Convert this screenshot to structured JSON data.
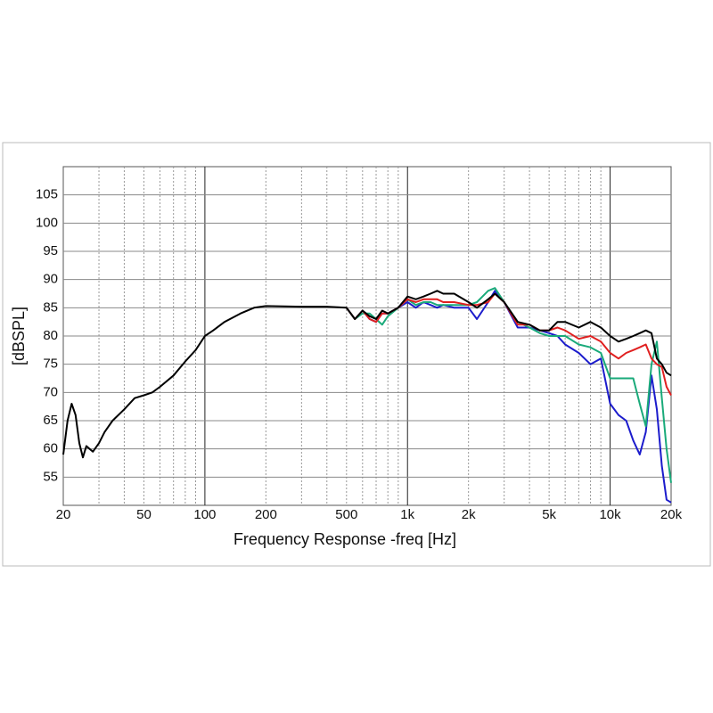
{
  "chart_data": {
    "type": "line",
    "ylabel": "[dBSPL]",
    "xlabel": "Frequency Response -freq [Hz]",
    "xscale": "log",
    "grid": true,
    "xlim": [
      20,
      20000
    ],
    "ylim": [
      50,
      110
    ],
    "yticks": [
      55,
      60,
      65,
      70,
      75,
      80,
      85,
      90,
      95,
      100,
      105
    ],
    "xticks": [
      20,
      50,
      100,
      200,
      500,
      {
        "value": 1000,
        "label": "1k"
      },
      {
        "value": 2000,
        "label": "2k"
      },
      {
        "value": 5000,
        "label": "5k"
      },
      {
        "value": 10000,
        "label": "10k"
      },
      {
        "value": 20000,
        "label": "20k"
      }
    ],
    "xgrid_major": [
      100,
      1000,
      10000
    ],
    "xgrid_minor": [
      30,
      40,
      50,
      60,
      70,
      80,
      90,
      200,
      300,
      400,
      500,
      600,
      700,
      800,
      900,
      2000,
      3000,
      4000,
      5000,
      6000,
      7000,
      8000,
      9000
    ],
    "x": [
      20,
      21,
      22,
      23,
      24,
      25,
      26,
      27,
      28,
      30,
      32,
      35,
      40,
      45,
      50,
      55,
      60,
      70,
      80,
      90,
      100,
      110,
      125,
      150,
      175,
      200,
      300,
      400,
      500,
      550,
      600,
      650,
      700,
      750,
      800,
      900,
      1000,
      1100,
      1200,
      1300,
      1400,
      1500,
      1700,
      2000,
      2200,
      2500,
      2700,
      3000,
      3500,
      4000,
      4500,
      5000,
      5500,
      6000,
      7000,
      8000,
      9000,
      10000,
      11000,
      12000,
      13000,
      14000,
      15000,
      16000,
      17000,
      18000,
      19000,
      20000
    ],
    "series": [
      {
        "color": "#000000",
        "values": [
          59,
          65,
          68,
          66,
          61,
          58.5,
          60.5,
          60,
          59.5,
          61,
          63,
          65,
          67,
          69,
          69.5,
          70,
          71,
          73,
          75.5,
          77.5,
          80,
          81,
          82.5,
          84,
          85,
          85.3,
          85.2,
          85.2,
          85,
          83,
          84.5,
          83.5,
          83,
          84.5,
          84,
          85,
          87,
          86.5,
          87,
          87.5,
          88,
          87.5,
          87.5,
          86,
          85,
          86.5,
          87.5,
          86,
          82.5,
          82,
          81,
          81,
          82.5,
          82.5,
          81.5,
          82.5,
          81.5,
          80,
          79,
          79.5,
          80,
          80.5,
          81,
          80.5,
          76,
          75,
          73.5,
          73
        ]
      },
      {
        "color": "#e02020",
        "values": [
          null,
          null,
          null,
          null,
          null,
          null,
          null,
          null,
          null,
          null,
          null,
          null,
          null,
          null,
          null,
          null,
          null,
          null,
          null,
          null,
          null,
          null,
          null,
          null,
          null,
          null,
          null,
          null,
          85,
          83,
          84.5,
          83,
          82.5,
          84,
          84,
          85,
          86.5,
          86,
          86.5,
          86.5,
          86.5,
          86,
          86,
          85.5,
          85.5,
          86,
          87.5,
          86,
          82,
          82,
          81,
          81,
          81.5,
          81,
          79.5,
          80,
          79,
          77,
          76,
          77,
          77.5,
          78,
          78.5,
          76,
          75,
          74.5,
          71,
          69.5
        ]
      },
      {
        "color": "#1aaa7a",
        "values": [
          null,
          null,
          null,
          null,
          null,
          null,
          null,
          null,
          null,
          null,
          null,
          null,
          null,
          null,
          null,
          null,
          null,
          null,
          null,
          null,
          null,
          null,
          null,
          null,
          null,
          null,
          null,
          null,
          85,
          83,
          84,
          84,
          83,
          82,
          83.5,
          85,
          86.5,
          85.5,
          86,
          86,
          85.5,
          85.5,
          85.5,
          85.5,
          86,
          88,
          88.5,
          86,
          82.5,
          81.5,
          80.5,
          80,
          80,
          80,
          78.5,
          78,
          77,
          72.5,
          72.5,
          72.5,
          72.5,
          68,
          64,
          75,
          79,
          69,
          60,
          54
        ]
      },
      {
        "color": "#1c1ccc",
        "values": [
          null,
          null,
          null,
          null,
          null,
          null,
          null,
          null,
          null,
          null,
          null,
          null,
          null,
          null,
          null,
          null,
          null,
          null,
          null,
          null,
          null,
          null,
          null,
          null,
          null,
          null,
          null,
          null,
          85,
          83,
          84.5,
          83,
          82.5,
          84,
          84,
          85,
          86,
          85,
          86,
          85.5,
          85,
          85.5,
          85,
          85,
          83,
          86,
          88,
          86,
          81.5,
          81.5,
          81,
          80.5,
          80,
          78.5,
          77,
          75,
          76,
          68,
          66,
          65,
          61.5,
          59,
          63,
          73,
          67,
          57,
          51,
          50.5
        ]
      }
    ]
  }
}
